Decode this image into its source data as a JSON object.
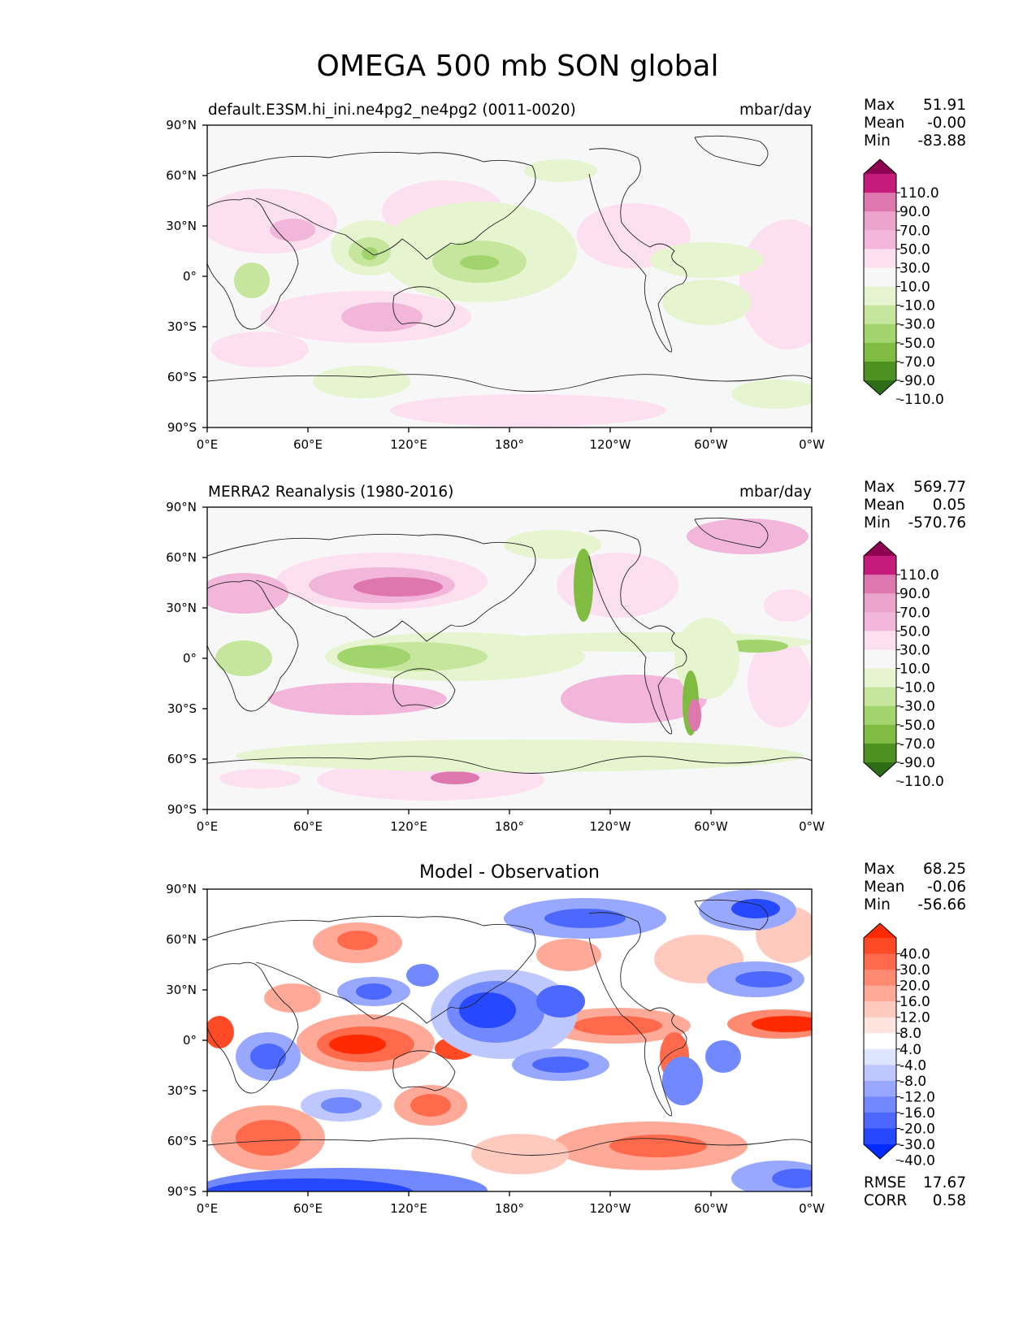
{
  "title": "OMEGA 500 mb SON global",
  "lat_ticks": [
    "90°N",
    "60°N",
    "30°N",
    "0°",
    "30°S",
    "60°S",
    "90°S"
  ],
  "lon_ticks": [
    "0°E",
    "60°E",
    "120°E",
    "180°",
    "120°W",
    "60°W",
    "0°W"
  ],
  "panels": [
    {
      "id": "model",
      "left_title": "default.E3SM.hi_ini.ne4pg2_ne4pg2 (0011-0020)",
      "center_title": "",
      "units": "mbar/day",
      "stats": {
        "max_label": "Max",
        "max": "51.91",
        "mean_label": "Mean",
        "mean": "-0.00",
        "min_label": "Min",
        "min": "-83.88"
      },
      "colorbar": {
        "levels": [
          "110.0",
          "90.0",
          "70.0",
          "50.0",
          "30.0",
          "10.0",
          "-10.0",
          "-30.0",
          "-50.0",
          "-70.0",
          "-90.0",
          "-110.0"
        ],
        "colors": [
          "#8e0152",
          "#c51b7d",
          "#de77ae",
          "#eba4cb",
          "#f1b6da",
          "#fde0ef",
          "#f7f7f7",
          "#e6f5d0",
          "#c5e69c",
          "#a2d46e",
          "#7fbc41",
          "#4d9221",
          "#2e6d18"
        ]
      }
    },
    {
      "id": "obs",
      "left_title": "MERRA2 Reanalysis (1980-2016)",
      "center_title": "",
      "units": "mbar/day",
      "stats": {
        "max_label": "Max",
        "max": "569.77",
        "mean_label": "Mean",
        "mean": "0.05",
        "min_label": "Min",
        "min": "-570.76"
      },
      "colorbar": {
        "levels": [
          "110.0",
          "90.0",
          "70.0",
          "50.0",
          "30.0",
          "10.0",
          "-10.0",
          "-30.0",
          "-50.0",
          "-70.0",
          "-90.0",
          "-110.0"
        ],
        "colors": [
          "#8e0152",
          "#c51b7d",
          "#de77ae",
          "#eba4cb",
          "#f1b6da",
          "#fde0ef",
          "#f7f7f7",
          "#e6f5d0",
          "#c5e69c",
          "#a2d46e",
          "#7fbc41",
          "#4d9221",
          "#2e6d18"
        ]
      }
    },
    {
      "id": "diff",
      "left_title": "",
      "center_title": "Model - Observation",
      "units": "",
      "stats": {
        "max_label": "Max",
        "max": "68.25",
        "mean_label": "Mean",
        "mean": "-0.06",
        "min_label": "Min",
        "min": "-56.66"
      },
      "extra_stats": {
        "rmse_label": "RMSE",
        "rmse": "17.67",
        "corr_label": "CORR",
        "corr": "0.58"
      },
      "colorbar": {
        "levels": [
          "40.0",
          "30.0",
          "20.0",
          "16.0",
          "12.0",
          "8.0",
          "4.0",
          "-4.0",
          "-8.0",
          "-12.0",
          "-16.0",
          "-20.0",
          "-30.0",
          "-40.0"
        ],
        "colors": [
          "#ff2a00",
          "#ff4a26",
          "#ff6a4c",
          "#ff8a72",
          "#ffaa98",
          "#ffcabe",
          "#ffe5de",
          "#ffffff",
          "#dee5ff",
          "#bec8ff",
          "#98a8ff",
          "#7288ff",
          "#4c68ff",
          "#2648ff",
          "#002aff"
        ]
      }
    }
  ]
}
